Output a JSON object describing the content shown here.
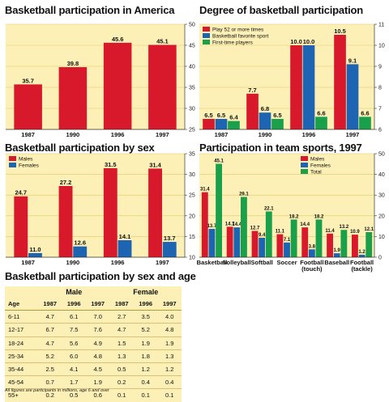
{
  "chart_data": [
    {
      "id": "c1",
      "type": "bar",
      "title": "Basketball participation in America",
      "categories": [
        "1987",
        "1990",
        "1996",
        "1997"
      ],
      "series": [
        {
          "name": "",
          "values": [
            35.7,
            39.8,
            45.6,
            45.1
          ],
          "color": "#d7192b"
        }
      ],
      "ylim": [
        25,
        50
      ],
      "yticks": [
        25,
        30,
        35,
        40,
        45,
        50
      ]
    },
    {
      "id": "c2",
      "type": "bar",
      "title": "Degree of basketball participation",
      "categories": [
        "1987",
        "1990",
        "1996",
        "1997"
      ],
      "series": [
        {
          "name": "Play 52 or more times",
          "values": [
            6.5,
            7.7,
            10.0,
            10.5
          ],
          "color": "#d7192b"
        },
        {
          "name": "Basketball favorite sport",
          "values": [
            6.5,
            6.8,
            10.0,
            9.1
          ],
          "color": "#1d64b2"
        },
        {
          "name": "First-time players",
          "values": [
            6.4,
            6.5,
            6.6,
            6.6
          ],
          "color": "#1aa04a"
        }
      ],
      "ylim": [
        6,
        11
      ],
      "yticks": [
        6,
        7,
        8,
        9,
        10,
        11
      ]
    },
    {
      "id": "c3",
      "type": "bar",
      "title": "Basketball participation by sex",
      "categories": [
        "1987",
        "1990",
        "1996",
        "1997"
      ],
      "series": [
        {
          "name": "Males",
          "values": [
            24.7,
            27.2,
            31.5,
            31.4
          ],
          "color": "#d7192b"
        },
        {
          "name": "Females",
          "values": [
            11.0,
            12.6,
            14.1,
            13.7
          ],
          "color": "#1d64b2"
        }
      ],
      "ylim": [
        10,
        35
      ],
      "yticks": [
        10,
        15,
        20,
        25,
        30,
        35
      ]
    },
    {
      "id": "c4",
      "type": "bar",
      "title": "Participation in team sports, 1997",
      "categories": [
        "Basketball",
        "Volleyball",
        "Softball",
        "Soccer",
        "Football\n(touch)",
        "Baseball",
        "Football\n(tackle)"
      ],
      "series": [
        {
          "name": "Males",
          "values": [
            31.4,
            14.7,
            12.7,
            11.1,
            14.4,
            11.4,
            10.9
          ],
          "color": "#d7192b"
        },
        {
          "name": "Females",
          "values": [
            13.7,
            14.4,
            9.4,
            7.1,
            3.8,
            1.9,
            1.2
          ],
          "color": "#1d64b2"
        },
        {
          "name": "Total",
          "values": [
            45.1,
            29.1,
            22.1,
            18.2,
            18.2,
            13.2,
            12.1
          ],
          "color": "#1aa04a"
        }
      ],
      "ylim": [
        0,
        50
      ],
      "yticks": [
        0,
        10,
        20,
        30,
        40,
        50
      ]
    },
    {
      "id": "c5",
      "type": "table",
      "title": "Basketball participation by sex and age",
      "group_headers": [
        "Male",
        "Female"
      ],
      "columns": [
        "Age",
        "1987",
        "1996",
        "1997",
        "1987",
        "1996",
        "1997"
      ],
      "rows": [
        [
          "6-11",
          "4.7",
          "6.1",
          "7.0",
          "2.7",
          "3.5",
          "4.0"
        ],
        [
          "12-17",
          "6.7",
          "7.5",
          "7.6",
          "4.7",
          "5.2",
          "4.8"
        ],
        [
          "18-24",
          "4.7",
          "5.6",
          "4.9",
          "1.5",
          "1.9",
          "1.9"
        ],
        [
          "25-34",
          "5.2",
          "6.0",
          "4.8",
          "1.3",
          "1.8",
          "1.3"
        ],
        [
          "35-44",
          "2.5",
          "4.1",
          "4.5",
          "0.5",
          "1.2",
          "1.2"
        ],
        [
          "45-54",
          "0.7",
          "1.7",
          "1.9",
          "0.2",
          "0.4",
          "0.4"
        ],
        [
          "55+",
          "0.2",
          "0.5",
          "0.6",
          "0.1",
          "0.1",
          "0.1"
        ]
      ],
      "footnote": "All figures are participants in millions, age 6 and over"
    }
  ]
}
